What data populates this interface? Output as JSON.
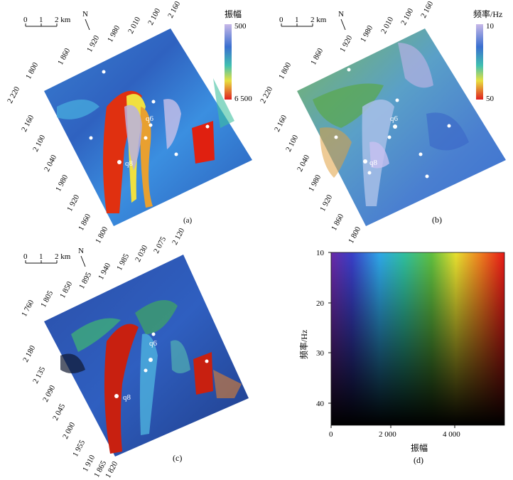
{
  "panels": {
    "a": {
      "caption": "(a)",
      "scale": {
        "ticks": [
          "0",
          "1",
          "2 km"
        ]
      },
      "north": "N",
      "colorbar": {
        "title": "振幅",
        "max_label": "500",
        "min_label": "6 500"
      },
      "axis_top_ticks": [
        "1 800",
        "1 860",
        "1 920",
        "1 980",
        "2 010",
        "2 100",
        "2 160"
      ],
      "axis_left_ticks": [
        "2 220",
        "2 160",
        "2 100",
        "2 040",
        "1 980",
        "1 920",
        "1 860",
        "1 800"
      ],
      "wells": [
        "q6",
        "q8"
      ]
    },
    "b": {
      "caption": "(b)",
      "scale": {
        "ticks": [
          "0",
          "1",
          "2 km"
        ]
      },
      "north": "N",
      "colorbar": {
        "title": "频率/Hz",
        "max_label": "10",
        "min_label": "50"
      },
      "axis_top_ticks": [
        "1 800",
        "1 860",
        "1 920",
        "1 980",
        "2 010",
        "2 100",
        "2 160"
      ],
      "axis_left_ticks": [
        "2 220",
        "2 160",
        "2 100",
        "2 040",
        "1 980",
        "1 920",
        "1 860",
        "1 800"
      ],
      "wells": [
        "q6",
        "q8"
      ]
    },
    "c": {
      "caption": "(c)",
      "scale": {
        "ticks": [
          "0",
          "1",
          "2 km"
        ]
      },
      "north": "N",
      "axis_top_ticks": [
        "1 760",
        "1 805",
        "1 850",
        "1 895",
        "1 940",
        "1 985",
        "2 030",
        "2 075",
        "2 120"
      ],
      "axis_left_ticks": [
        "2 180",
        "2 135",
        "2 090",
        "2 045",
        "2 000",
        "1 955",
        "1 910",
        "1 865",
        "1 820"
      ],
      "wells": [
        "q6",
        "q8"
      ]
    },
    "d": {
      "caption": "(d)",
      "xlabel": "振幅",
      "ylabel": "频率/Hz",
      "x_ticks": [
        "0",
        "2 000",
        "4 000"
      ],
      "y_ticks": [
        "10",
        "20",
        "30",
        "40"
      ]
    }
  }
}
